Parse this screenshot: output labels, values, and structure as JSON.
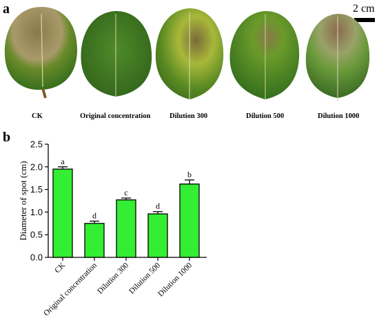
{
  "panel_a": {
    "letter": "a",
    "scale_label": "2 cm",
    "captions": [
      "CK",
      "Original concentration",
      "Dilution 300",
      "Dilution 500",
      "Dilution 1000"
    ]
  },
  "panel_b": {
    "letter": "b"
  },
  "colors": {
    "bar_fill": "#33ee33",
    "bar_stroke": "#000000",
    "axis": "#000000"
  },
  "chart_data": {
    "type": "bar",
    "categories": [
      "CK",
      "Original concentration",
      "Dilution 300",
      "Dilution 500",
      "Dilution 1000"
    ],
    "values": [
      1.95,
      0.75,
      1.27,
      0.96,
      1.62
    ],
    "errors": [
      0.05,
      0.05,
      0.04,
      0.05,
      0.09
    ],
    "significance": [
      "a",
      "d",
      "c",
      "d",
      "b"
    ],
    "ylabel": "Diameter of spot (cm)",
    "xlabel": "",
    "ylim": [
      0.0,
      2.5
    ],
    "yticks": [
      "0.0",
      "0.5",
      "1.0",
      "1.5",
      "2.0",
      "2.5"
    ],
    "grid": false
  }
}
